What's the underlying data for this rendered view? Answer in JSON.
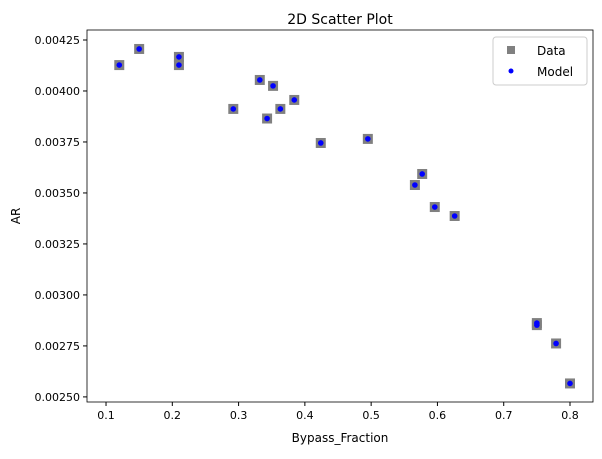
{
  "chart_data": {
    "type": "scatter",
    "title": "2D Scatter Plot",
    "xlabel": "Bypass_Fraction",
    "ylabel": "AR",
    "xlim": [
      0.0713,
      0.8347
    ],
    "ylim": [
      0.002475,
      0.004299
    ],
    "xticks": [
      "0.1",
      "0.2",
      "0.3",
      "0.4",
      "0.5",
      "0.6",
      "0.7",
      "0.8"
    ],
    "yticks": [
      "0.00250",
      "0.00275",
      "0.00300",
      "0.00325",
      "0.00350",
      "0.00375",
      "0.00400",
      "0.00425"
    ],
    "grid": false,
    "legend": "top-right",
    "series": [
      {
        "name": "Data",
        "marker": "square",
        "color": "#808080",
        "x": [
          0.12,
          0.15,
          0.21,
          0.21,
          0.292,
          0.332,
          0.343,
          0.352,
          0.363,
          0.384,
          0.424,
          0.495,
          0.566,
          0.577,
          0.596,
          0.626,
          0.75,
          0.75,
          0.779,
          0.8
        ],
        "y": [
          0.004127,
          0.004206,
          0.004167,
          0.004127,
          0.003912,
          0.004054,
          0.003865,
          0.004025,
          0.003912,
          0.003956,
          0.003745,
          0.003765,
          0.003539,
          0.003593,
          0.003431,
          0.003387,
          0.002862,
          0.002852,
          0.002762,
          0.002566
        ]
      },
      {
        "name": "Model",
        "marker": "circle",
        "color": "#0000ff",
        "x": [
          0.12,
          0.15,
          0.21,
          0.21,
          0.292,
          0.332,
          0.343,
          0.352,
          0.363,
          0.384,
          0.424,
          0.495,
          0.566,
          0.577,
          0.596,
          0.626,
          0.75,
          0.75,
          0.779,
          0.8
        ],
        "y": [
          0.004127,
          0.004206,
          0.004167,
          0.004127,
          0.003912,
          0.004054,
          0.003865,
          0.004025,
          0.003912,
          0.003956,
          0.003745,
          0.003765,
          0.003539,
          0.003593,
          0.003431,
          0.003387,
          0.002862,
          0.002852,
          0.002762,
          0.002566
        ]
      }
    ]
  }
}
